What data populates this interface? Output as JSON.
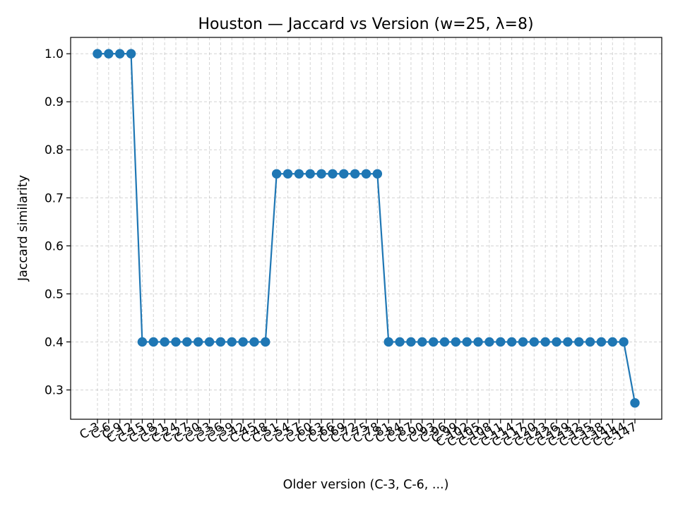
{
  "chart_data": {
    "type": "line",
    "title": "Houston — Jaccard vs Version (w=25, λ=8)",
    "xlabel": "Older version (C-3, C-6, ...)",
    "ylabel": "Jaccard similarity",
    "categories": [
      "C-3",
      "C-6",
      "C-9",
      "C-12",
      "C-15",
      "C-18",
      "C-21",
      "C-24",
      "C-27",
      "C-30",
      "C-33",
      "C-36",
      "C-39",
      "C-42",
      "C-45",
      "C-48",
      "C-51",
      "C-54",
      "C-57",
      "C-60",
      "C-63",
      "C-66",
      "C-69",
      "C-72",
      "C-75",
      "C-78",
      "C-81",
      "C-84",
      "C-87",
      "C-90",
      "C-93",
      "C-96",
      "C-99",
      "C-102",
      "C-105",
      "C-108",
      "C-111",
      "C-114",
      "C-117",
      "C-120",
      "C-123",
      "C-126",
      "C-129",
      "C-132",
      "C-135",
      "C-138",
      "C-141",
      "C-144",
      "C-147"
    ],
    "series": [
      {
        "name": "",
        "color": "#1f77b4",
        "values": [
          1.0,
          1.0,
          1.0,
          1.0,
          0.4,
          0.4,
          0.4,
          0.4,
          0.4,
          0.4,
          0.4,
          0.4,
          0.4,
          0.4,
          0.4,
          0.4,
          0.75,
          0.75,
          0.75,
          0.75,
          0.75,
          0.75,
          0.75,
          0.75,
          0.75,
          0.75,
          0.4,
          0.4,
          0.4,
          0.4,
          0.4,
          0.4,
          0.4,
          0.4,
          0.4,
          0.4,
          0.4,
          0.4,
          0.4,
          0.4,
          0.4,
          0.4,
          0.4,
          0.4,
          0.4,
          0.4,
          0.4,
          0.4,
          0.273
        ]
      }
    ],
    "yticks": [
      "0.3",
      "0.4",
      "0.5",
      "0.6",
      "0.7",
      "0.8",
      "0.9",
      "1.0"
    ],
    "ylim": [
      0.239,
      1.034
    ],
    "grid": true,
    "grid_style": "dashed",
    "legend": "none"
  }
}
